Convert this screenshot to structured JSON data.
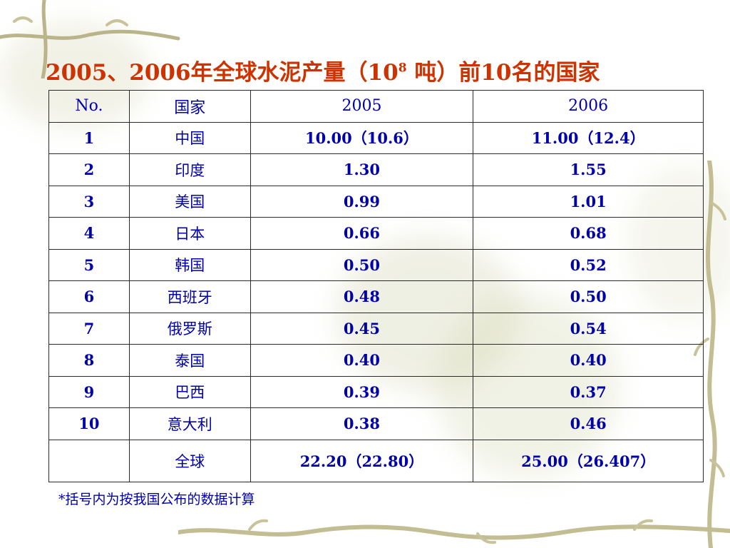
{
  "title": {
    "prefix": "2005、2006年全球水泥产量（10",
    "sup": "8",
    "suffix": " 吨）前10名的国家"
  },
  "table": {
    "headers": [
      "No.",
      "国家",
      "2005",
      "2006"
    ],
    "rows": [
      {
        "no": "1",
        "country": "中国",
        "y2005": "10.00（10.6）",
        "y2006": "11.00（12.4）"
      },
      {
        "no": "2",
        "country": "印度",
        "y2005": "1.30",
        "y2006": "1.55"
      },
      {
        "no": "3",
        "country": "美国",
        "y2005": "0.99",
        "y2006": "1.01"
      },
      {
        "no": "4",
        "country": "日本",
        "y2005": "0.66",
        "y2006": "0.68"
      },
      {
        "no": "5",
        "country": "韩国",
        "y2005": "0.50",
        "y2006": "0.52"
      },
      {
        "no": "6",
        "country": "西班牙",
        "y2005": "0.48",
        "y2006": "0.50"
      },
      {
        "no": "7",
        "country": "俄罗斯",
        "y2005": "0.45",
        "y2006": "0.54"
      },
      {
        "no": "8",
        "country": "泰国",
        "y2005": "0.40",
        "y2006": "0.40"
      },
      {
        "no": "9",
        "country": "巴西",
        "y2005": "0.39",
        "y2006": "0.37"
      },
      {
        "no": "10",
        "country": "意大利",
        "y2005": "0.38",
        "y2006": "0.46"
      }
    ],
    "total": {
      "no": "",
      "country": "全球",
      "y2005": "22.20（22.80）",
      "y2006": "25.00（26.407）"
    }
  },
  "note": "*括号内为按我国公布的数据计算",
  "colors": {
    "title": "#cc3300",
    "text": "#0000aa",
    "border": "#2a2a2a"
  }
}
